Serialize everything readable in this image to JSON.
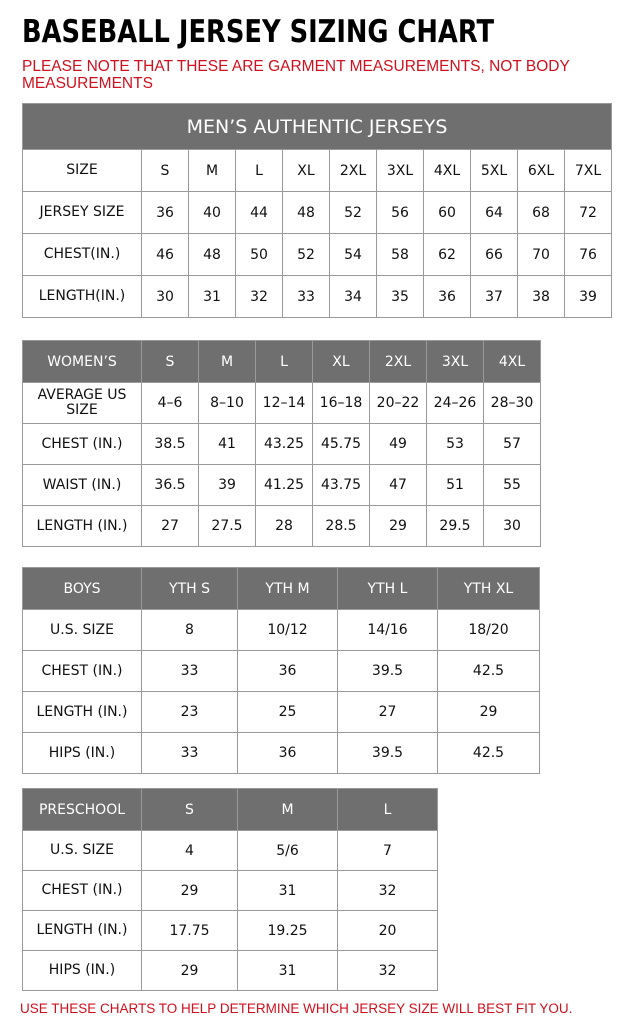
{
  "title": "BASEBALL JERSEY SIZING CHART",
  "note": "PLEASE NOTE THAT THESE ARE GARMENT MEASUREMENTS, NOT BODY MEASUREMENTS",
  "footer": "USE THESE CHARTS TO HELP DETERMINE WHICH JERSEY SIZE WILL BEST FIT YOU.",
  "colors": {
    "header_bg": "#6f6f6f",
    "note_red": "#d0101e"
  },
  "men": {
    "caption": "MEN’S AUTHENTIC JERSEYS",
    "rows": [
      [
        "SIZE",
        "S",
        "M",
        "L",
        "XL",
        "2XL",
        "3XL",
        "4XL",
        "5XL",
        "6XL",
        "7XL"
      ],
      [
        "JERSEY SIZE",
        "36",
        "40",
        "44",
        "48",
        "52",
        "56",
        "60",
        "64",
        "68",
        "72"
      ],
      [
        "CHEST(IN.)",
        "46",
        "48",
        "50",
        "52",
        "54",
        "58",
        "62",
        "66",
        "70",
        "76"
      ],
      [
        "LENGTH(IN.)",
        "30",
        "31",
        "32",
        "33",
        "34",
        "35",
        "36",
        "37",
        "38",
        "39"
      ]
    ]
  },
  "women": {
    "header": [
      "WOMEN’S",
      "S",
      "M",
      "L",
      "XL",
      "2XL",
      "3XL",
      "4XL"
    ],
    "rows": [
      [
        "AVERAGE US SIZE",
        "4–6",
        "8–10",
        "12–14",
        "16–18",
        "20–22",
        "24–26",
        "28–30"
      ],
      [
        "CHEST (IN.)",
        "38.5",
        "41",
        "43.25",
        "45.75",
        "49",
        "53",
        "57"
      ],
      [
        "WAIST (IN.)",
        "36.5",
        "39",
        "41.25",
        "43.75",
        "47",
        "51",
        "55"
      ],
      [
        "LENGTH (IN.)",
        "27",
        "27.5",
        "28",
        "28.5",
        "29",
        "29.5",
        "30"
      ]
    ]
  },
  "boys": {
    "header": [
      "BOYS",
      "YTH S",
      "YTH M",
      "YTH L",
      "YTH XL"
    ],
    "rows": [
      [
        "U.S. SIZE",
        "8",
        "10/12",
        "14/16",
        "18/20"
      ],
      [
        "CHEST (IN.)",
        "33",
        "36",
        "39.5",
        "42.5"
      ],
      [
        "LENGTH (IN.)",
        "23",
        "25",
        "27",
        "29"
      ],
      [
        "HIPS (IN.)",
        "33",
        "36",
        "39.5",
        "42.5"
      ]
    ]
  },
  "preschool": {
    "header": [
      "PRESCHOOL",
      "S",
      "M",
      "L"
    ],
    "rows": [
      [
        "U.S. SIZE",
        "4",
        "5/6",
        "7"
      ],
      [
        "CHEST (IN.)",
        "29",
        "31",
        "32"
      ],
      [
        "LENGTH (IN.)",
        "17.75",
        "19.25",
        "20"
      ],
      [
        "HIPS (IN.)",
        "29",
        "31",
        "32"
      ]
    ]
  }
}
